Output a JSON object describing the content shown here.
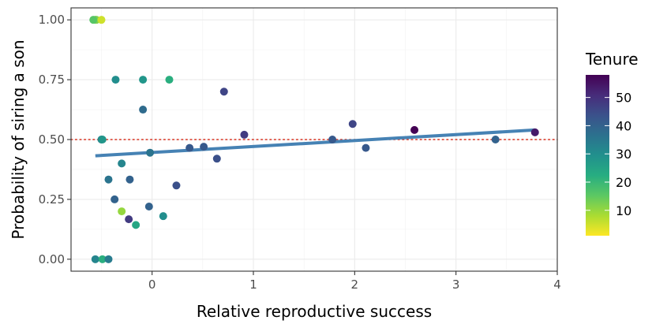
{
  "chart_data": {
    "type": "scatter",
    "xlabel": "Relative reproductive success",
    "ylabel": "Probability of siring a son",
    "xlim": [
      -0.8,
      4.0
    ],
    "ylim": [
      -0.05,
      1.05
    ],
    "x_ticks": [
      0,
      1,
      2,
      3,
      4
    ],
    "x_tick_labels": [
      "0",
      "1",
      "2",
      "3",
      "4"
    ],
    "y_ticks": [
      0,
      0.25,
      0.5,
      0.75,
      1.0
    ],
    "y_tick_labels": [
      "0.00",
      "0.25",
      "0.50",
      "0.75",
      "1.00"
    ],
    "grid": true,
    "reference_line": {
      "y": 0.5,
      "style": "dotted",
      "color": "#d7301f"
    },
    "trend_line": {
      "x": [
        -0.56,
        3.78
      ],
      "y": [
        0.432,
        0.54
      ],
      "color": "#4682b4"
    },
    "legend": {
      "title": "Tenure",
      "position": "right",
      "type": "colorbar",
      "ticks": [
        10,
        20,
        30,
        40,
        50
      ],
      "tick_labels": [
        "10",
        "20",
        "30",
        "40",
        "50"
      ],
      "range": [
        1,
        58
      ],
      "colormap": "viridis",
      "stops": [
        "#440154",
        "#472c7a",
        "#3b518b",
        "#2c718e",
        "#21908d",
        "#27ad81",
        "#5cc863",
        "#aadc32",
        "#fde725"
      ]
    },
    "points": [
      {
        "x": -0.56,
        "y": 1.0,
        "tenure": 14
      },
      {
        "x": -0.55,
        "y": 1.0,
        "tenure": 12
      },
      {
        "x": -0.5,
        "y": 1.0,
        "tenure": 5
      },
      {
        "x": -0.58,
        "y": 1.0,
        "tenure": 16
      },
      {
        "x": -0.36,
        "y": 0.75,
        "tenure": 30
      },
      {
        "x": -0.09,
        "y": 0.75,
        "tenure": 28
      },
      {
        "x": 0.17,
        "y": 0.75,
        "tenure": 22
      },
      {
        "x": -0.09,
        "y": 0.625,
        "tenure": 38
      },
      {
        "x": 0.71,
        "y": 0.7,
        "tenure": 46
      },
      {
        "x": -0.5,
        "y": 0.5,
        "tenure": 32
      },
      {
        "x": -0.49,
        "y": 0.5,
        "tenure": 28
      },
      {
        "x": -0.02,
        "y": 0.445,
        "tenure": 36
      },
      {
        "x": 0.37,
        "y": 0.465,
        "tenure": 42
      },
      {
        "x": 0.51,
        "y": 0.47,
        "tenure": 42
      },
      {
        "x": 0.64,
        "y": 0.42,
        "tenure": 44
      },
      {
        "x": 0.91,
        "y": 0.52,
        "tenure": 48
      },
      {
        "x": 1.78,
        "y": 0.5,
        "tenure": 42
      },
      {
        "x": 1.98,
        "y": 0.565,
        "tenure": 46
      },
      {
        "x": 2.11,
        "y": 0.465,
        "tenure": 42
      },
      {
        "x": 2.59,
        "y": 0.54,
        "tenure": 58
      },
      {
        "x": 3.39,
        "y": 0.5,
        "tenure": 40
      },
      {
        "x": 3.78,
        "y": 0.53,
        "tenure": 54
      },
      {
        "x": -0.3,
        "y": 0.4,
        "tenure": 32
      },
      {
        "x": -0.43,
        "y": 0.333,
        "tenure": 36
      },
      {
        "x": -0.22,
        "y": 0.333,
        "tenure": 40
      },
      {
        "x": 0.24,
        "y": 0.308,
        "tenure": 44
      },
      {
        "x": -0.37,
        "y": 0.25,
        "tenure": 40
      },
      {
        "x": -0.03,
        "y": 0.22,
        "tenure": 40
      },
      {
        "x": -0.3,
        "y": 0.2,
        "tenure": 10
      },
      {
        "x": 0.11,
        "y": 0.18,
        "tenure": 30
      },
      {
        "x": -0.23,
        "y": 0.167,
        "tenure": 48
      },
      {
        "x": -0.16,
        "y": 0.143,
        "tenure": 24
      },
      {
        "x": -0.56,
        "y": 0.0,
        "tenure": 32
      },
      {
        "x": -0.49,
        "y": 0.0,
        "tenure": 22
      },
      {
        "x": -0.43,
        "y": 0.0,
        "tenure": 34
      }
    ]
  }
}
